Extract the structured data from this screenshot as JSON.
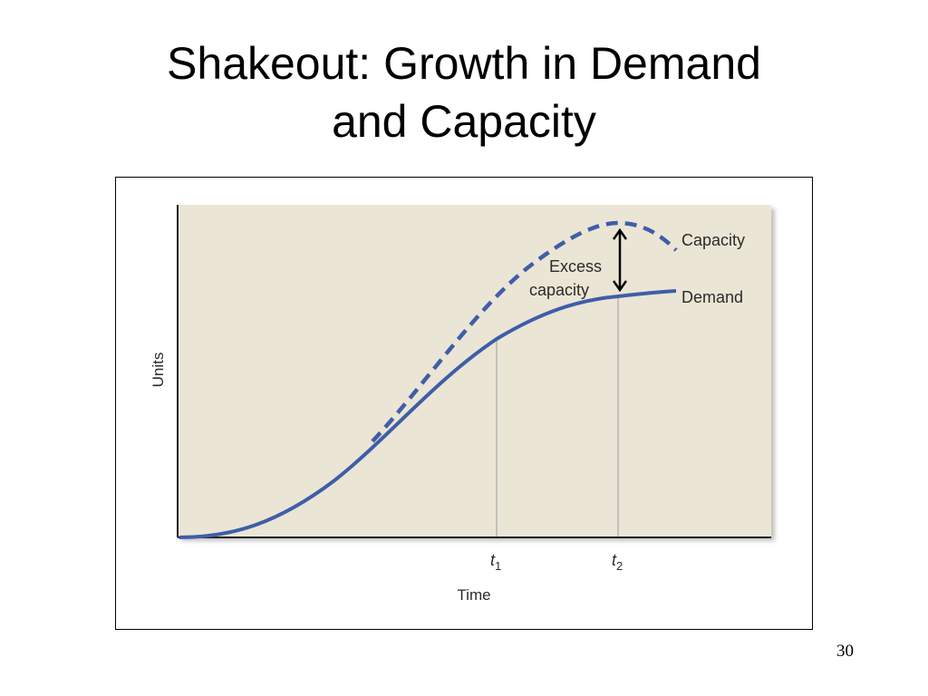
{
  "slide": {
    "title_line1": "Shakeout: Growth in Demand",
    "title_line2": "and Capacity",
    "page_number": "30"
  },
  "diagram": {
    "y_axis_label": "Units",
    "x_axis_label": "Time",
    "t1_label": "t",
    "t1_subscript": "1",
    "t2_label": "t",
    "t2_subscript": "2",
    "capacity_label": "Capacity",
    "demand_label": "Demand",
    "excess_label_line1": "Excess",
    "excess_label_line2": "capacity",
    "colors": {
      "plot_background": "#ebe5d5",
      "curve": "#3f5ea8",
      "marker_lines": "#b5b5b5",
      "axis": "#222222",
      "arrow": "#000000"
    }
  }
}
